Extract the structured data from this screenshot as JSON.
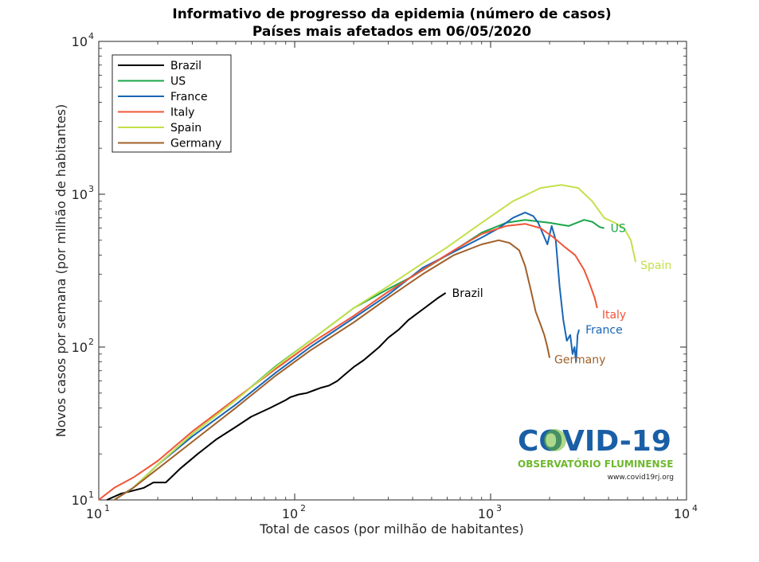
{
  "chart_data": {
    "type": "line",
    "title": "Informativo de progresso da epidemia (número de casos)",
    "subtitle": "Países mais afetados em 06/05/2020",
    "xlabel": "Total de casos (por milhão de habitantes)",
    "ylabel": "Novos casos por semana (por milhão de habitantes)",
    "xscale": "log",
    "yscale": "log",
    "xlim": [
      10,
      10000
    ],
    "ylim": [
      10,
      10000
    ],
    "xticks": [
      {
        "base": "10",
        "exp": "1"
      },
      {
        "base": "10",
        "exp": "2"
      },
      {
        "base": "10",
        "exp": "3"
      },
      {
        "base": "10",
        "exp": "4"
      }
    ],
    "yticks": [
      {
        "base": "10",
        "exp": "1"
      },
      {
        "base": "10",
        "exp": "2"
      },
      {
        "base": "10",
        "exp": "3"
      },
      {
        "base": "10",
        "exp": "4"
      }
    ],
    "legend_position": "top-left",
    "series": [
      {
        "name": "Brazil",
        "color": "#000000",
        "label": "Brazil",
        "x": [
          11,
          13,
          15,
          17,
          19,
          22,
          26,
          32,
          40,
          50,
          60,
          75,
          90,
          95,
          105,
          115,
          125,
          135,
          150,
          165,
          180,
          200,
          225,
          240,
          270,
          300,
          340,
          380,
          420,
          460,
          500,
          540,
          590
        ],
        "y": [
          10,
          11,
          11.5,
          12,
          13,
          13,
          16,
          20,
          25,
          30,
          35,
          40,
          45,
          47,
          49,
          50,
          52,
          54,
          56,
          60,
          66,
          74,
          82,
          88,
          100,
          115,
          130,
          150,
          165,
          180,
          195,
          210,
          226
        ]
      },
      {
        "name": "US",
        "color": "#1aa64a",
        "label": "US",
        "x": [
          12,
          15,
          20,
          30,
          50,
          80,
          120,
          200,
          300,
          400,
          600,
          900,
          1200,
          1500,
          2000,
          2500,
          3000,
          3300,
          3600,
          3800
        ],
        "y": [
          10,
          12,
          17,
          27,
          45,
          75,
          110,
          180,
          240,
          290,
          400,
          560,
          650,
          680,
          650,
          620,
          680,
          660,
          610,
          600
        ]
      },
      {
        "name": "France",
        "color": "#1966b5",
        "label": "France",
        "x": [
          12,
          15,
          20,
          30,
          50,
          80,
          120,
          200,
          300,
          450,
          650,
          900,
          1100,
          1300,
          1500,
          1650,
          1750,
          1850,
          1950,
          2050,
          2150,
          2250,
          2350,
          2450,
          2550,
          2620,
          2680,
          2730,
          2780,
          2830
        ],
        "y": [
          10,
          12,
          17,
          26,
          42,
          68,
          100,
          155,
          220,
          330,
          420,
          520,
          600,
          700,
          760,
          720,
          650,
          550,
          470,
          620,
          500,
          250,
          150,
          110,
          120,
          90,
          100,
          80,
          120,
          130
        ]
      },
      {
        "name": "Italy",
        "color": "#f05538",
        "label": "Italy",
        "x": [
          10,
          12,
          15,
          20,
          30,
          50,
          80,
          120,
          200,
          300,
          450,
          650,
          900,
          1200,
          1500,
          1800,
          2100,
          2400,
          2700,
          3000,
          3200,
          3400,
          3500
        ],
        "y": [
          10,
          12,
          14,
          18,
          28,
          46,
          72,
          105,
          160,
          230,
          320,
          430,
          550,
          620,
          640,
          600,
          520,
          450,
          400,
          320,
          260,
          210,
          180
        ]
      },
      {
        "name": "Spain",
        "color": "#c3e04a",
        "label": "Spain",
        "x": [
          12,
          15,
          20,
          30,
          50,
          80,
          120,
          200,
          300,
          400,
          600,
          900,
          1300,
          1800,
          2300,
          2800,
          3300,
          3800,
          4300,
          4800,
          5200,
          5500
        ],
        "y": [
          10,
          12,
          17,
          27,
          45,
          74,
          110,
          180,
          250,
          320,
          450,
          650,
          900,
          1100,
          1150,
          1100,
          900,
          700,
          650,
          600,
          500,
          360
        ]
      },
      {
        "name": "Germany",
        "color": "#a0602a",
        "label": "Germany",
        "x": [
          12,
          15,
          20,
          30,
          50,
          80,
          120,
          200,
          300,
          450,
          650,
          900,
          1100,
          1250,
          1400,
          1500,
          1600,
          1700,
          1800,
          1880,
          1950,
          2000
        ],
        "y": [
          10,
          12,
          16,
          24,
          40,
          65,
          95,
          145,
          210,
          300,
          400,
          470,
          500,
          480,
          430,
          340,
          240,
          170,
          140,
          120,
          100,
          85
        ]
      }
    ]
  },
  "logo": {
    "title": "COVID-19",
    "subtitle": "OBSERVATÓRIO FLUMINENSE",
    "url": "www.covid19rj.org"
  }
}
